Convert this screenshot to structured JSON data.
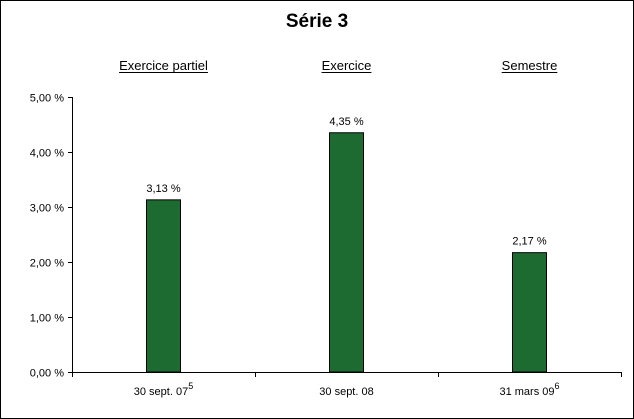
{
  "chart_data": {
    "type": "bar",
    "title": "Série 3",
    "period_headers": [
      "Exercice partiel",
      "Exercice",
      "Semestre"
    ],
    "categories": [
      {
        "label": "30 sept. 07",
        "note": "5"
      },
      {
        "label": "30 sept. 08",
        "note": ""
      },
      {
        "label": "31 mars 09",
        "note": "6"
      }
    ],
    "values": [
      3.13,
      4.35,
      2.17
    ],
    "value_labels": [
      "3,13 %",
      "4,35 %",
      "2,17 %"
    ],
    "ylim": [
      0,
      5
    ],
    "yticks": [
      {
        "value": 0,
        "label": "0,00 %"
      },
      {
        "value": 1,
        "label": "1,00 %"
      },
      {
        "value": 2,
        "label": "2,00 %"
      },
      {
        "value": 3,
        "label": "3,00 %"
      },
      {
        "value": 4,
        "label": "4,00 %"
      },
      {
        "value": 5,
        "label": "5,00 %"
      }
    ],
    "xlabel": "",
    "ylabel": "",
    "grid": false,
    "bar_color": "#1e6b32",
    "bar_edge_color": "#000000"
  }
}
